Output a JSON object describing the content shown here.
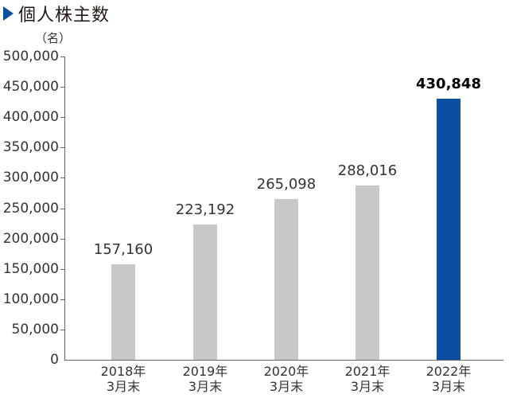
{
  "header": {
    "title": "個人株主数",
    "unit": "（名）",
    "marker_icon": "triangle-right-icon"
  },
  "colors": {
    "accent": "#0b4ea2",
    "bar_default": "#c8c8c8",
    "axis": "#666666"
  },
  "chart_data": {
    "type": "bar",
    "title": "個人株主数",
    "xlabel": "",
    "ylabel": "（名）",
    "ylim": [
      0,
      500000
    ],
    "yticks": [
      0,
      50000,
      100000,
      150000,
      200000,
      250000,
      300000,
      350000,
      400000,
      450000,
      500000
    ],
    "ytick_labels": [
      "0",
      "50,000",
      "100,000",
      "150,000",
      "200,000",
      "250,000",
      "300,000",
      "350,000",
      "400,000",
      "450,000",
      "500,000"
    ],
    "categories": [
      "2018年 3月末",
      "2019年 3月末",
      "2020年 3月末",
      "2021年 3月末",
      "2022年 3月末"
    ],
    "category_lines": [
      [
        "2018年",
        "3月末"
      ],
      [
        "2019年",
        "3月末"
      ],
      [
        "2020年",
        "3月末"
      ],
      [
        "2021年",
        "3月末"
      ],
      [
        "2022年",
        "3月末"
      ]
    ],
    "values": [
      157160,
      223192,
      265098,
      288016,
      430848
    ],
    "value_labels": [
      "157,160",
      "223,192",
      "265,098",
      "288,016",
      "430,848"
    ],
    "highlight_index": 4,
    "grid": false,
    "legend": null
  }
}
